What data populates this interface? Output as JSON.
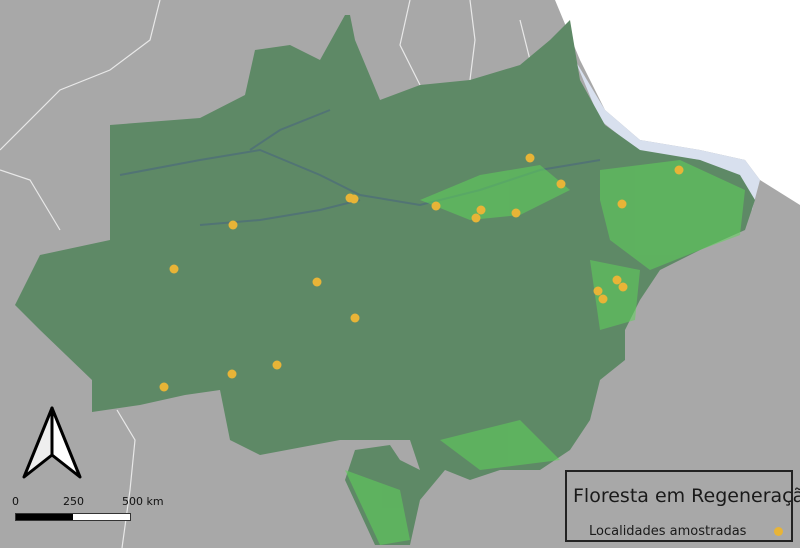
{
  "legend": {
    "title": "Floresta em Regeneração",
    "item_label": "Localidades amostradas",
    "marker_color": "#e8b437"
  },
  "scale_bar": {
    "labels": [
      "0",
      "250",
      "500 km"
    ]
  },
  "north_arrow": "north-arrow-icon",
  "colors": {
    "forest": "#5e8966",
    "regeneration": "#5fd35a",
    "background": "#a8a8a8",
    "ocean": "#ffffff",
    "rivers": "#4f6f78"
  }
}
